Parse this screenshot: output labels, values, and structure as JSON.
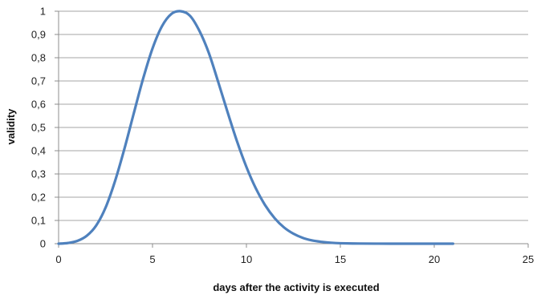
{
  "chart_data": {
    "type": "line",
    "title": "",
    "xlabel": "days after the activity is executed",
    "ylabel": "validity",
    "xlim": [
      0,
      25
    ],
    "ylim": [
      0,
      1
    ],
    "x_ticks": [
      0,
      5,
      10,
      15,
      20,
      25
    ],
    "y_ticks": [
      0,
      0.1,
      0.2,
      0.3,
      0.4,
      0.5,
      0.6,
      0.7,
      0.8,
      0.9,
      1
    ],
    "x_tick_labels": [
      "0",
      "5",
      "10",
      "15",
      "20",
      "25"
    ],
    "y_tick_labels": [
      "0",
      "0,1",
      "0,2",
      "0,3",
      "0,4",
      "0,5",
      "0,6",
      "0,7",
      "0,8",
      "0,9",
      "1"
    ],
    "grid": "horizontal",
    "legend": "none",
    "series_color": "#4f81bd",
    "series": [
      {
        "x": [
          0,
          0.5,
          1,
          1.5,
          2,
          2.5,
          3,
          3.5,
          4,
          4.5,
          5,
          5.5,
          6,
          6.5,
          7,
          7.5,
          8,
          8.5,
          9,
          9.5,
          10,
          10.5,
          11,
          11.5,
          12,
          12.5,
          13,
          13.5,
          14,
          14.5,
          15,
          16,
          17,
          18,
          19,
          20,
          21
        ],
        "values": [
          0,
          0.003,
          0.012,
          0.034,
          0.078,
          0.155,
          0.268,
          0.407,
          0.56,
          0.71,
          0.84,
          0.935,
          0.988,
          1.0,
          0.98,
          0.915,
          0.82,
          0.695,
          0.565,
          0.44,
          0.33,
          0.238,
          0.165,
          0.11,
          0.07,
          0.043,
          0.025,
          0.014,
          0.008,
          0.004,
          0.002,
          0.0006,
          0.0002,
          5e-05,
          1e-05,
          0,
          0
        ]
      }
    ]
  }
}
